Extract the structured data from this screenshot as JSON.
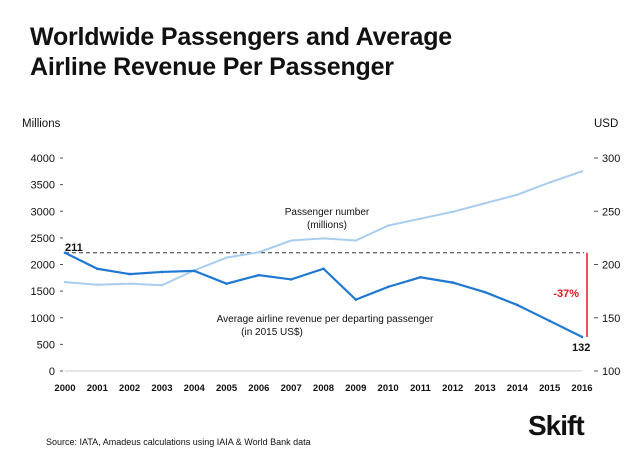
{
  "title_lines": [
    "Worldwide Passengers and Average",
    "Airline Revenue Per Passenger"
  ],
  "left_unit": "Millions",
  "right_unit": "USD",
  "source": "Source: IATA, Amadeus calculations using IAIA & World Bank data",
  "logo": "Skift",
  "colors": {
    "passengers": "#a8cdef",
    "revenue": "#1f78d1",
    "change": "#e0191d",
    "reference": "#333333"
  },
  "chart_data": {
    "type": "line",
    "x": [
      2000,
      2001,
      2002,
      2003,
      2004,
      2005,
      2006,
      2007,
      2008,
      2009,
      2010,
      2011,
      2012,
      2013,
      2014,
      2015,
      2016
    ],
    "y_left": {
      "label": "Millions",
      "ylim": [
        0,
        4000
      ],
      "ticks": [
        0,
        500,
        1000,
        1500,
        2000,
        2500,
        3000,
        3500,
        4000
      ]
    },
    "y_right": {
      "label": "USD",
      "ylim": [
        100,
        300
      ],
      "ticks": [
        100,
        150,
        200,
        250,
        300
      ]
    },
    "series": [
      {
        "name": "Passenger number (millions)",
        "axis": "left",
        "values": [
          1670,
          1620,
          1640,
          1610,
          1890,
          2130,
          2230,
          2450,
          2490,
          2450,
          2730,
          2860,
          2990,
          3150,
          3310,
          3540,
          3750
        ]
      },
      {
        "name": "Average airline revenue per departing passenger (in 2015 US$)",
        "axis": "right",
        "values": [
          211,
          196,
          191,
          193,
          194,
          182,
          190,
          186,
          196,
          167,
          179,
          188,
          183,
          174,
          162,
          147,
          132
        ]
      }
    ],
    "annotations": {
      "series_labels": [
        "Passenger number",
        "(millions)",
        "Average airline revenue per departing passenger",
        "(in 2015 US$)"
      ],
      "start_value": "211",
      "end_value": "132",
      "reference_value": 211,
      "change": "-37%"
    }
  }
}
